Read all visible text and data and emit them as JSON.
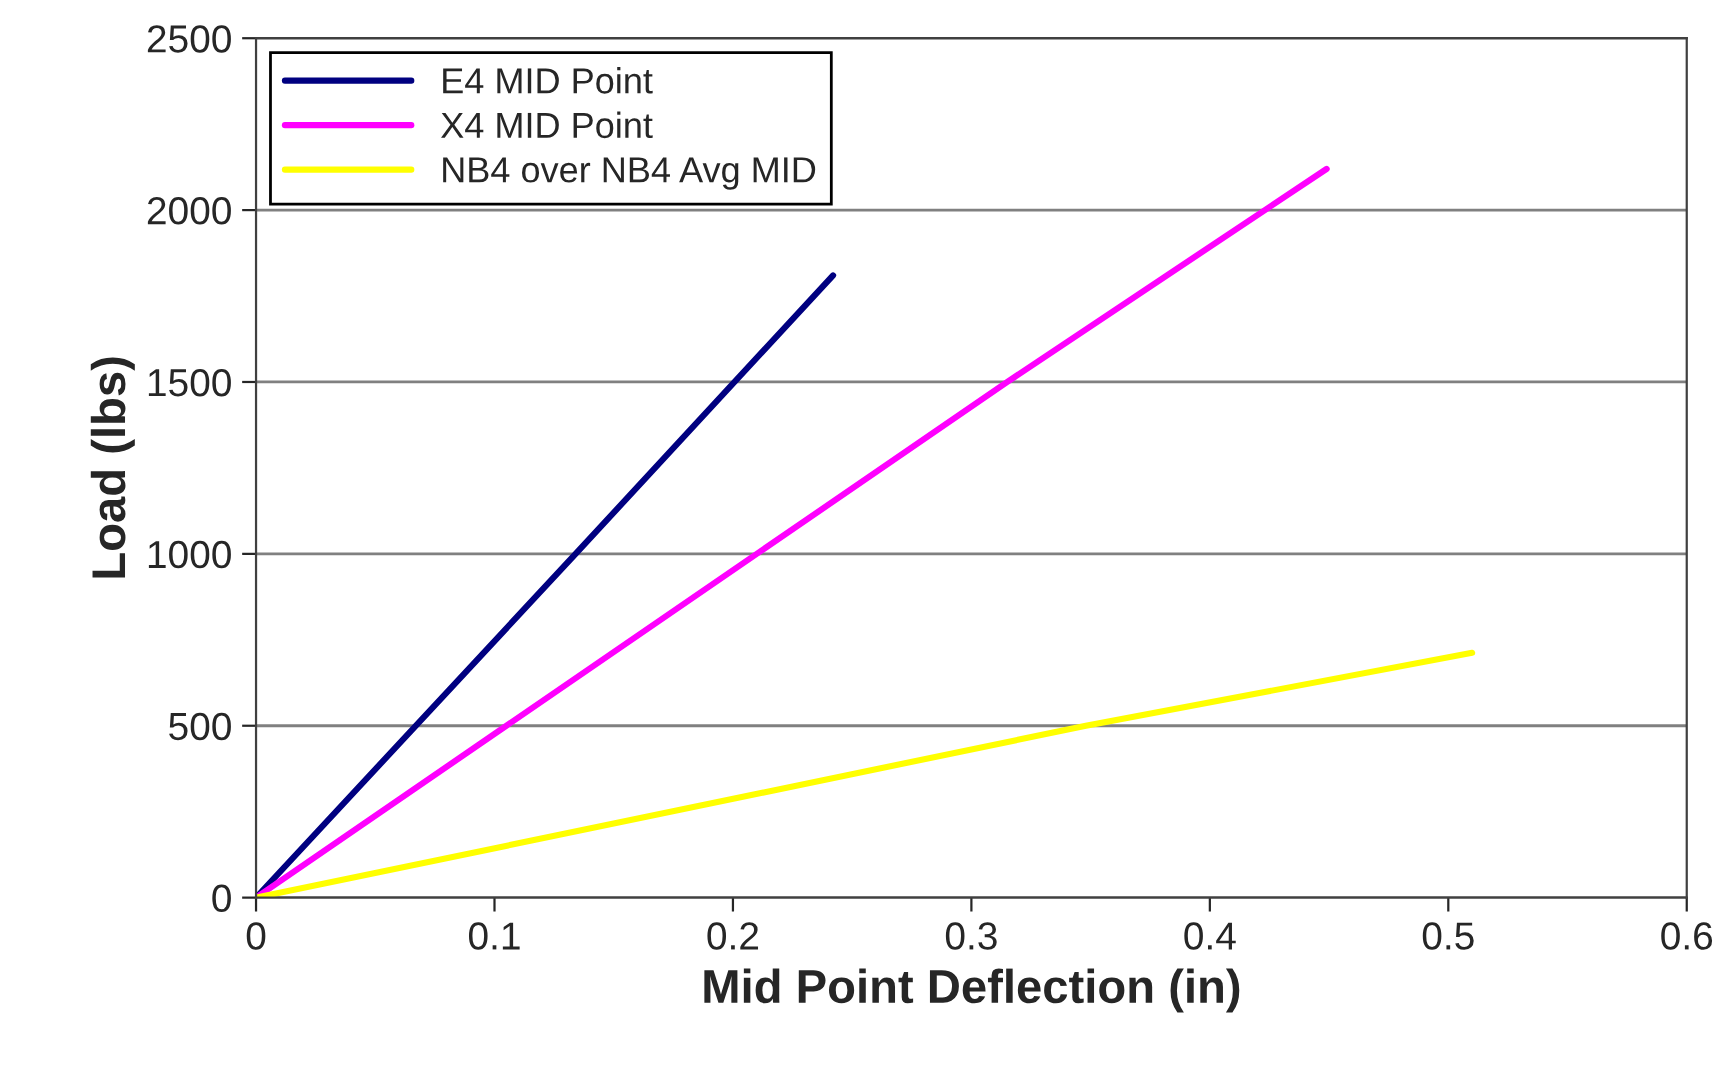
{
  "chart_data": {
    "type": "line",
    "xlabel": "Mid Point Deflection (in)",
    "ylabel": "Load (lbs)",
    "xlim": [
      0,
      0.6
    ],
    "xticks": [
      {
        "value": 0,
        "label": "0"
      },
      0.1,
      0.2,
      0.3,
      0.4,
      0.5,
      0.6
    ],
    "ylim": [
      0,
      2500
    ],
    "yticks": [
      0,
      500,
      1000,
      1500,
      2000,
      2500
    ],
    "grid": "y",
    "legend": "top left",
    "marker": "none",
    "line_style": "solid",
    "series": [
      {
        "name": "E4 MID Point",
        "color": "#000080",
        "x": [
          0,
          0.134,
          0.242
        ],
        "values": [
          0,
          1000,
          1810
        ]
      },
      {
        "name": "X4 MID Point",
        "color": "#ff00ff",
        "x": [
          0,
          0.315,
          0.449
        ],
        "values": [
          0,
          1500,
          2120
        ]
      },
      {
        "name": "NB4 over NB4 Avg MID",
        "color": "#ffff00",
        "x": [
          0,
          0.348,
          0.51
        ],
        "values": [
          0,
          500,
          712
        ]
      }
    ]
  }
}
